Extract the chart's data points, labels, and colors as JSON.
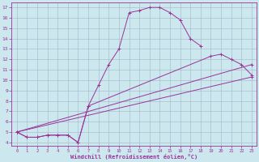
{
  "bg_color": "#cce8ee",
  "line_color": "#993399",
  "grid_color": "#a0b8c8",
  "xlabel": "Windchill (Refroidissement éolien,°C)",
  "xlim": [
    -0.5,
    23.5
  ],
  "ylim": [
    3.7,
    17.5
  ],
  "xticks": [
    0,
    1,
    2,
    3,
    4,
    5,
    6,
    7,
    8,
    9,
    10,
    11,
    12,
    13,
    14,
    15,
    16,
    17,
    18,
    19,
    20,
    21,
    22,
    23
  ],
  "yticks": [
    4,
    5,
    6,
    7,
    8,
    9,
    10,
    11,
    12,
    13,
    14,
    15,
    16,
    17
  ],
  "curve1_x": [
    0,
    1,
    2,
    3,
    4,
    5,
    6,
    7,
    8,
    9,
    10,
    11,
    12,
    13,
    14,
    15,
    16,
    17,
    18
  ],
  "curve1_y": [
    5,
    4.5,
    4.5,
    4.7,
    4.7,
    4.7,
    4.0,
    7.5,
    9.5,
    11.5,
    13.0,
    16.5,
    16.7,
    17.0,
    17.0,
    16.5,
    15.8,
    14.0,
    13.3
  ],
  "curve2_x": [
    0,
    23
  ],
  "curve2_y": [
    5,
    10.3
  ],
  "curve3_x": [
    0,
    23
  ],
  "curve3_y": [
    5,
    11.5
  ],
  "curve4_x": [
    0,
    1,
    2,
    3,
    4,
    5,
    6,
    7,
    19,
    20,
    21,
    22,
    23
  ],
  "curve4_y": [
    5,
    4.5,
    4.5,
    4.7,
    4.7,
    4.7,
    4.0,
    7.5,
    12.3,
    12.5,
    12.0,
    11.5,
    10.5
  ]
}
